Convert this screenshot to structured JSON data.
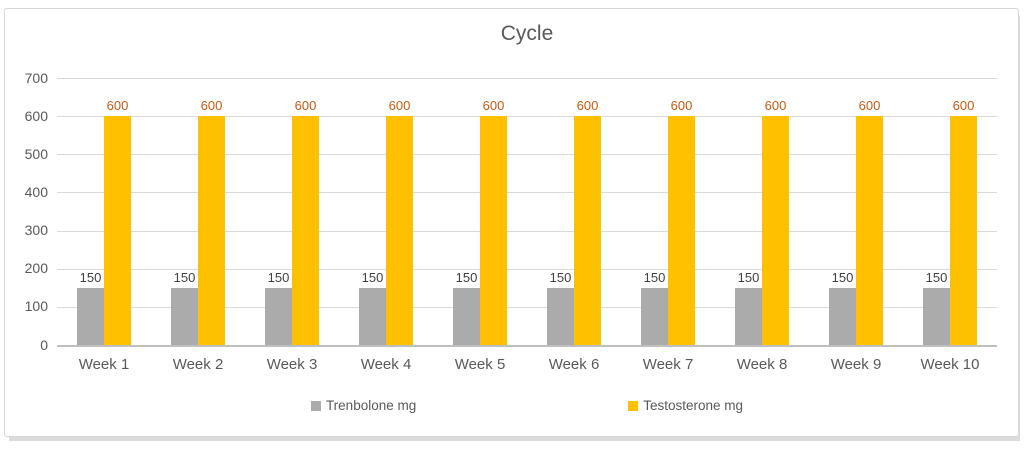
{
  "chart_data": {
    "type": "bar",
    "title": "Cycle",
    "categories": [
      "Week 1",
      "Week 2",
      "Week 3",
      "Week 4",
      "Week 5",
      "Week 6",
      "Week 7",
      "Week 8",
      "Week 9",
      "Week 10"
    ],
    "series": [
      {
        "name": "Trenbolone mg",
        "color": "#ACABAB",
        "label_color": "#404040",
        "values": [
          150,
          150,
          150,
          150,
          150,
          150,
          150,
          150,
          150,
          150
        ]
      },
      {
        "name": "Testosterone mg",
        "color": "#FFC000",
        "label_color": "#C55A11",
        "values": [
          600,
          600,
          600,
          600,
          600,
          600,
          600,
          600,
          600,
          600
        ]
      }
    ],
    "ylabel": "",
    "xlabel": "",
    "ylim": [
      0,
      700
    ],
    "ytick_step": 100,
    "grid": true,
    "legend_position": "bottom",
    "axis_text_color": "#595959",
    "gridline_color": "#D9D9D9"
  }
}
